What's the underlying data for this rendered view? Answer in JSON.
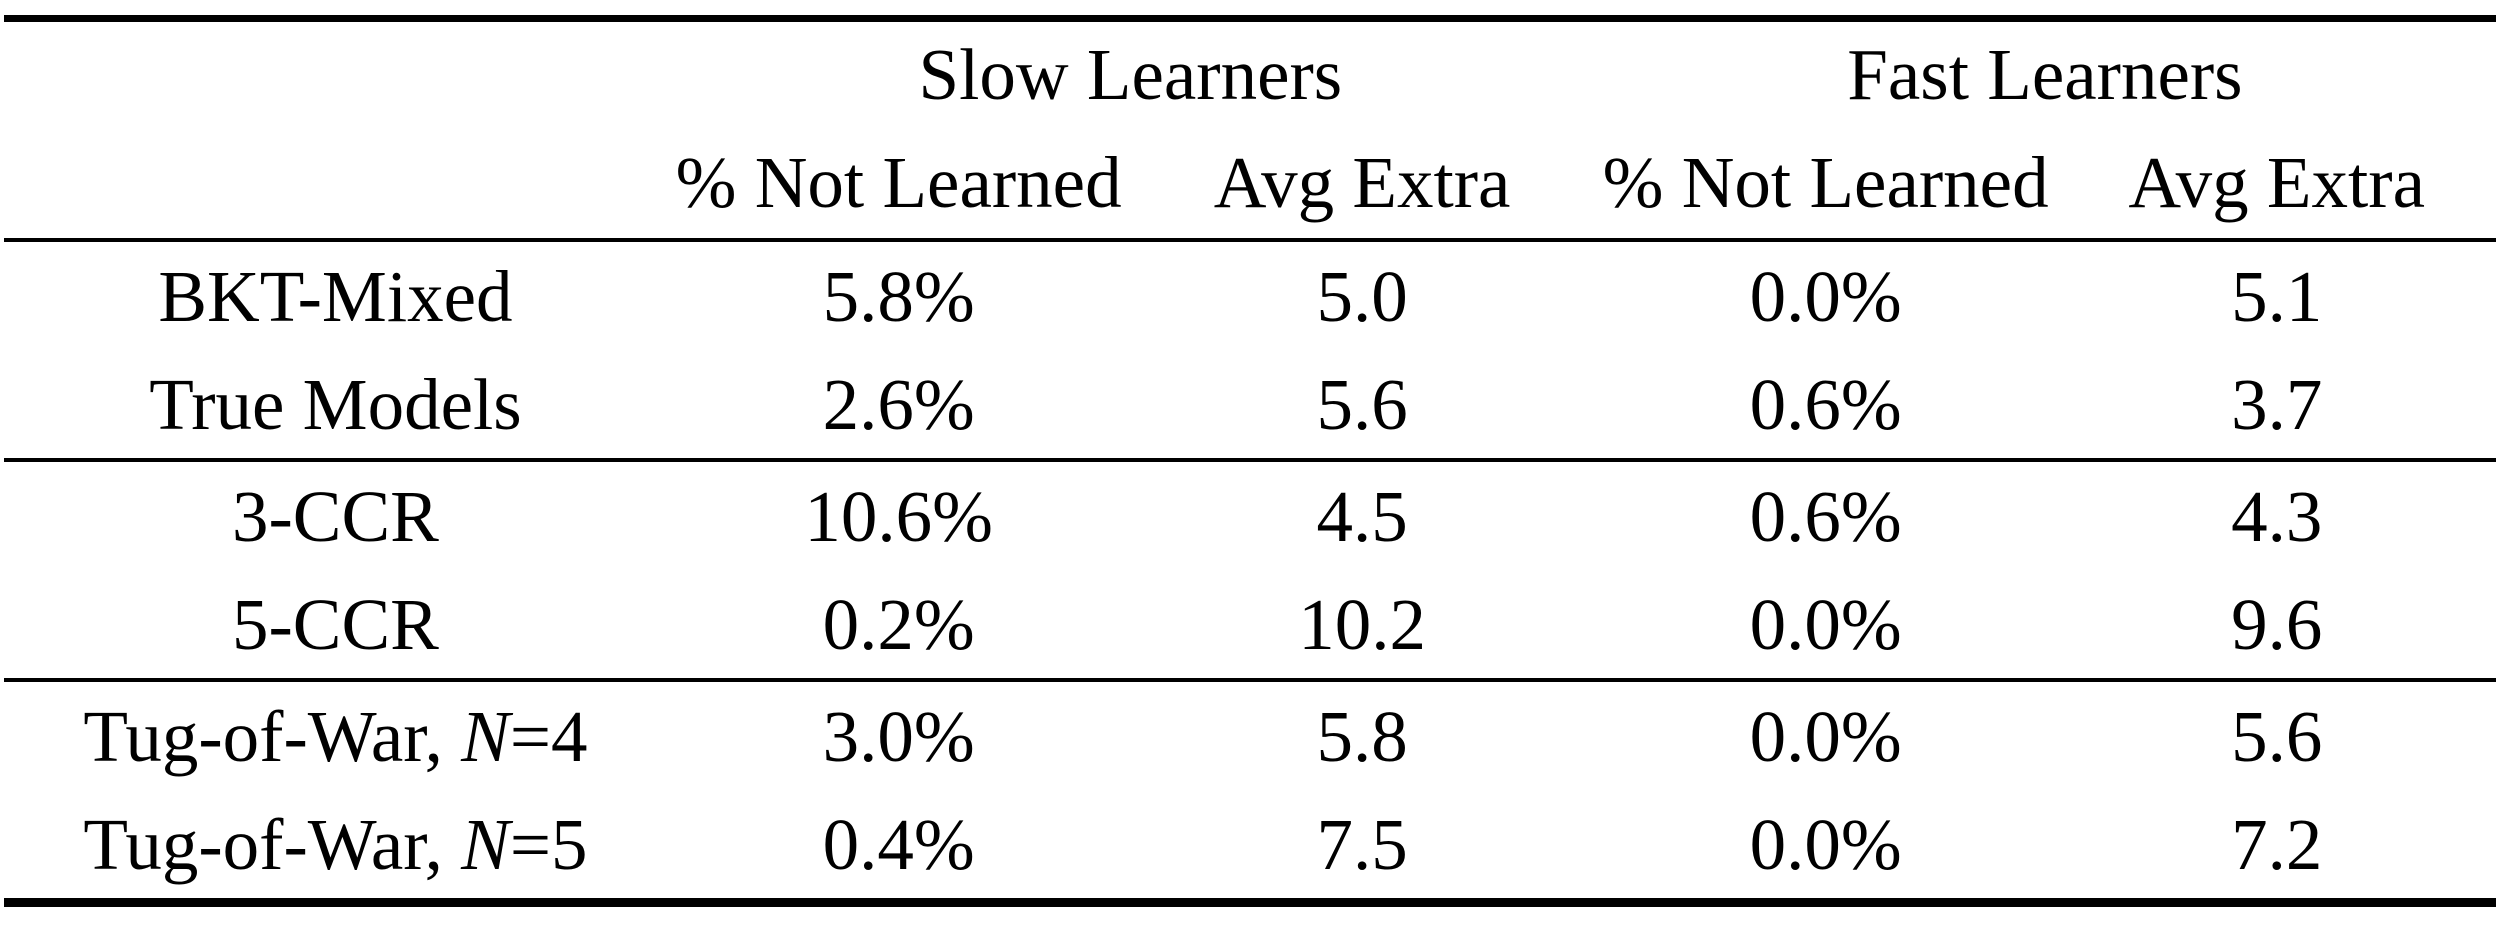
{
  "colors": {
    "background": "#ffffff",
    "text": "#000000",
    "rule": "#000000"
  },
  "table": {
    "header": {
      "groups": [
        {
          "label": "Slow Learners"
        },
        {
          "label": "Fast Learners"
        }
      ],
      "sub_columns": [
        "% Not Learned",
        "Avg Extra",
        "% Not Learned",
        "Avg Extra"
      ]
    },
    "groups": [
      {
        "rows": [
          {
            "label": {
              "pre": "BKT-Mixed",
              "italic": "",
              "post": ""
            },
            "cells": [
              "5.8%",
              "5.0",
              "0.0%",
              "5.1"
            ]
          },
          {
            "label": {
              "pre": "True Models",
              "italic": "",
              "post": ""
            },
            "cells": [
              "2.6%",
              "5.6",
              "0.6%",
              "3.7"
            ]
          }
        ]
      },
      {
        "rows": [
          {
            "label": {
              "pre": "3-CCR",
              "italic": "",
              "post": ""
            },
            "cells": [
              "10.6%",
              "4.5",
              "0.6%",
              "4.3"
            ]
          },
          {
            "label": {
              "pre": "5-CCR",
              "italic": "",
              "post": ""
            },
            "cells": [
              "0.2%",
              "10.2",
              "0.0%",
              "9.6"
            ]
          }
        ]
      },
      {
        "rows": [
          {
            "label": {
              "pre": "Tug-of-War, ",
              "italic": "N",
              "post": "=4"
            },
            "cells": [
              "3.0%",
              "5.8",
              "0.0%",
              "5.6"
            ]
          },
          {
            "label": {
              "pre": "Tug-of-War, ",
              "italic": "N",
              "post": "=5"
            },
            "cells": [
              "0.4%",
              "7.5",
              "0.0%",
              "7.2"
            ]
          }
        ]
      }
    ]
  }
}
